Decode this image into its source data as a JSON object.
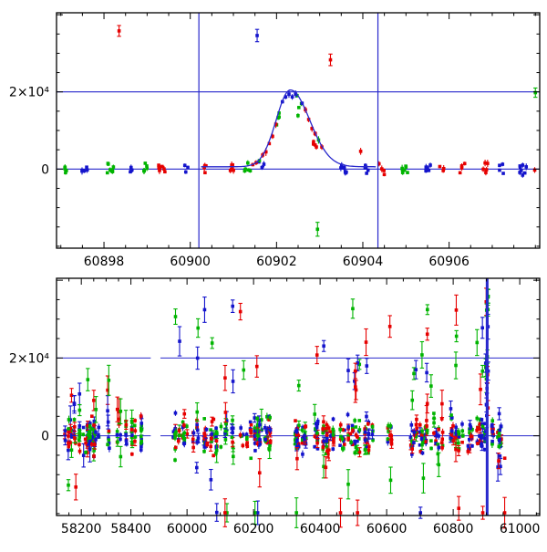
{
  "figure": {
    "bg": "#ffffff",
    "frame_color": "#000000"
  },
  "colors": {
    "red": "#e60000",
    "green": "#00b400",
    "blue": "#1414cc",
    "guide": "#2828cc"
  },
  "chart_data": [
    {
      "name": "top",
      "type": "scatter",
      "description": "Zoom on transient outburst light curve around peak, three filter series (red/green/blue) with error bars and fitted model curve",
      "x_range": [
        60896.9,
        60908.1
      ],
      "y_range": [
        -20500,
        40500
      ],
      "x_labeled_ticks": [
        {
          "value": 60898,
          "label": "60898"
        },
        {
          "value": 60900,
          "label": "60900"
        },
        {
          "value": 60902,
          "label": "60902"
        },
        {
          "value": 60904,
          "label": "60904"
        },
        {
          "value": 60906,
          "label": "60906"
        }
      ],
      "x_minor_step": 0.5,
      "y_major_ticks": [
        0,
        20000,
        40000
      ],
      "y_labeled_ticks": [
        {
          "value": 20000,
          "label": "2×10⁴"
        },
        {
          "value": 0,
          "label": "0"
        }
      ],
      "y_minor_step": 5000,
      "hlines": [
        0,
        20000
      ],
      "vlines": [
        {
          "x": 60900.2,
          "width": 1.2
        },
        {
          "x": 60904.35,
          "width": 1.2
        }
      ],
      "model_curve": {
        "shape": "asymmetric-gaussian",
        "t0": 60902.32,
        "amplitude": 19900,
        "baseline": 600,
        "sigma_rise": 0.33,
        "sigma_fall": 0.45,
        "x_start": 60900.25,
        "x_end": 60904.3
      },
      "generator": {
        "seed": 11,
        "x_start": 60897.0,
        "x_end": 60908.05,
        "group_step": [
          0.3,
          0.62
        ],
        "group_size": [
          3,
          8
        ],
        "group_span": 0.16,
        "noise_sigma": 800,
        "amp_scatter": [
          0.72,
          1.04
        ],
        "point_baseline": 100,
        "ebar": [
          250,
          950
        ]
      },
      "peak_trace": {
        "n": 22,
        "x0": 60901.45,
        "x1": 60903.05
      },
      "outliers": [
        {
          "color": "red",
          "x": 60898.35,
          "y": 35800,
          "ebar": 1400
        },
        {
          "color": "blue",
          "x": 60901.55,
          "y": 34600,
          "ebar": 1600
        },
        {
          "color": "red",
          "x": 60903.25,
          "y": 28300,
          "ebar": 1500
        },
        {
          "color": "green",
          "x": 60902.95,
          "y": -15600,
          "ebar": 1800
        },
        {
          "color": "green",
          "x": 60908.0,
          "y": 19800,
          "ebar": 1200
        },
        {
          "color": "red",
          "x": 60903.95,
          "y": 4600,
          "ebar": 900
        }
      ]
    },
    {
      "name": "bottom",
      "type": "scatter",
      "description": "Full multi-season light curve with broken MJD axis, three filter series with error bars, guide lines at 0 and 2×10⁴ and vertical marker at outburst epoch",
      "segments": [
        {
          "x_range": [
            58100,
            58480
          ],
          "pos": [
            0.0,
            0.195
          ]
        },
        {
          "x_range": [
            59920,
            61060
          ],
          "pos": [
            0.215,
            1.0
          ]
        }
      ],
      "y_range": [
        -20500,
        40500
      ],
      "x_labeled_ticks": [
        {
          "value": 58200,
          "label": "58200"
        },
        {
          "value": 58400,
          "label": "58400"
        },
        {
          "value": 60000,
          "label": "60000"
        },
        {
          "value": 60200,
          "label": "60200"
        },
        {
          "value": 60400,
          "label": "60400"
        },
        {
          "value": 60600,
          "label": "60600"
        },
        {
          "value": 60800,
          "label": "60800"
        },
        {
          "value": 61000,
          "label": "61000"
        }
      ],
      "x_minor_step": 50,
      "y_major_ticks": [
        0,
        20000,
        40000
      ],
      "y_labeled_ticks": [
        {
          "value": 20000,
          "label": "2×10⁴"
        },
        {
          "value": 0,
          "label": "0"
        }
      ],
      "y_minor_step": 5000,
      "hlines": [
        0,
        20000
      ],
      "vlines": [
        {
          "x": 60902,
          "width": 3
        }
      ],
      "clusters": [
        {
          "x0": 58130,
          "x1": 58445,
          "n": 170,
          "outlier_frac": 0.1,
          "outlier_scale": 11000
        },
        {
          "x0": 59955,
          "x1": 60255,
          "n": 215
        },
        {
          "x0": 60325,
          "x1": 60615,
          "n": 215
        },
        {
          "x0": 60672,
          "x1": 60958,
          "n": 225
        }
      ],
      "generator": {
        "seed": 29,
        "core_sigma": 2300,
        "outlier_frac": 0.13,
        "outlier_base": 3500,
        "outlier_scale": 30000,
        "outlier_pos_prob": 0.6,
        "y_clip": [
          -19800,
          39800
        ],
        "ebar_core": [
          300,
          1200
        ],
        "ebar_outlier": [
          1200,
          4000
        ]
      },
      "transient_points": {
        "x0": 60896,
        "x1": 60906,
        "n": 16,
        "y_min": 5000,
        "y_max": 36500
      }
    }
  ]
}
